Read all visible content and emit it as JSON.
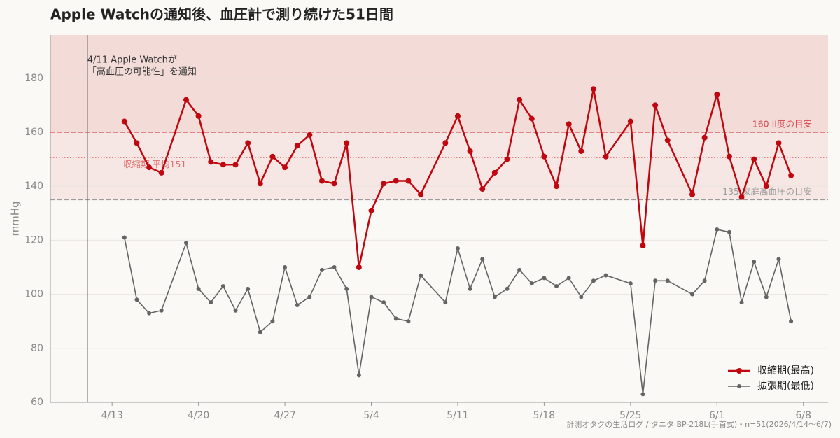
{
  "chart_data": {
    "type": "line",
    "title": "Apple Watchの通知後、血圧計で測り続けた51日間",
    "y_label": "mmHg",
    "footer": "計測オタクの生活ログ / タニタ BP-218L(手首式)・n=51(2026/4/14〜6/7)",
    "x": [
      "4/14",
      "4/15",
      "4/16",
      "4/17",
      "4/19",
      "4/20",
      "4/21",
      "4/22",
      "4/23",
      "4/24",
      "4/25",
      "4/26",
      "4/27",
      "4/28",
      "4/29",
      "4/30",
      "5/1",
      "5/2",
      "5/3",
      "5/4",
      "5/5",
      "5/6",
      "5/7",
      "5/8",
      "5/10",
      "5/11",
      "5/12",
      "5/13",
      "5/14",
      "5/15",
      "5/16",
      "5/17",
      "5/18",
      "5/19",
      "5/20",
      "5/21",
      "5/22",
      "5/23",
      "5/25",
      "5/26",
      "5/27",
      "5/28",
      "5/30",
      "5/31",
      "6/1",
      "6/2",
      "6/3",
      "6/4",
      "6/5",
      "6/6",
      "6/7"
    ],
    "series": [
      {
        "name": "収縮期(最高)",
        "color": "#c0070f",
        "width": 2.5,
        "r": 4,
        "values": [
          164,
          156,
          147,
          145,
          172,
          166,
          149,
          148,
          148,
          156,
          141,
          151,
          147,
          155,
          159,
          142,
          141,
          156,
          110,
          131,
          141,
          142,
          142,
          137,
          156,
          166,
          153,
          139,
          145,
          150,
          172,
          165,
          151,
          140,
          163,
          153,
          176,
          151,
          164,
          118,
          170,
          157,
          137,
          158,
          174,
          151,
          136,
          150,
          140,
          156,
          144
        ]
      },
      {
        "name": "拡張期(最低)",
        "color": "#646464",
        "width": 1.6,
        "r": 3,
        "values": [
          121,
          98,
          93,
          94,
          119,
          102,
          97,
          103,
          94,
          102,
          86,
          90,
          110,
          96,
          99,
          109,
          110,
          102,
          70,
          99,
          97,
          91,
          90,
          107,
          97,
          117,
          102,
          113,
          99,
          102,
          109,
          104,
          106,
          103,
          106,
          99,
          105,
          107,
          104,
          63,
          105,
          105,
          100,
          105,
          124,
          123,
          97,
          112,
          99,
          113,
          90
        ]
      }
    ],
    "xlim": [
      "4/8",
      "6/10"
    ],
    "xticks": [
      "4/13",
      "4/20",
      "4/27",
      "5/4",
      "5/11",
      "5/18",
      "5/25",
      "6/1",
      "6/8"
    ],
    "ylim": [
      60,
      196
    ],
    "yticks": [
      60,
      80,
      100,
      120,
      140,
      160,
      180
    ],
    "grid": true,
    "legend": "lower right",
    "bands": [
      {
        "from": 135,
        "color": "#f7e7e4"
      },
      {
        "from": 160,
        "color": "#f3dcd8"
      }
    ],
    "hlines": [
      {
        "value": 160,
        "label": "160 II度の目安",
        "color": "#d9484f",
        "dash": "6 4"
      },
      {
        "value": 150.6,
        "label": "収縮期 平均151",
        "color": "#e07070",
        "dash": "1.5 2.5"
      },
      {
        "value": 135,
        "label": "135 家庭高血圧の目安",
        "color": "#9a9a9a",
        "dash": "6 4"
      }
    ],
    "vline": {
      "x": "4/11",
      "text": [
        "4/11 Apple Watchが",
        "「高血圧の可能性」を通知"
      ]
    }
  }
}
